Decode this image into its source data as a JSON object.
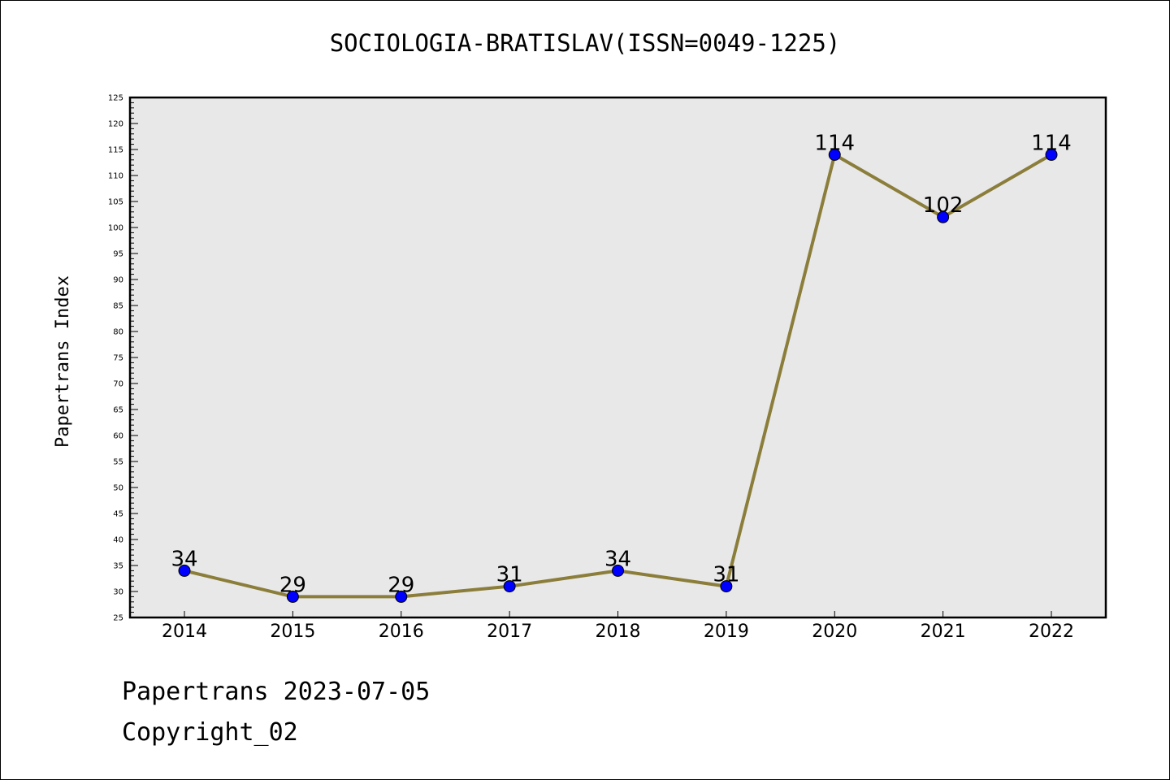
{
  "chart_data": {
    "type": "line",
    "title": "SOCIOLOGIA-BRATISLAV(ISSN=0049-1225)",
    "xlabel": "",
    "ylabel": "Papertrans Index",
    "categories": [
      "2014",
      "2015",
      "2016",
      "2017",
      "2018",
      "2019",
      "2020",
      "2021",
      "2022"
    ],
    "series": [
      {
        "values": [
          34,
          29,
          29,
          31,
          34,
          31,
          114,
          102,
          114
        ]
      }
    ],
    "ylim": [
      25,
      125
    ],
    "y_ticks": [
      "25",
      "30",
      "35",
      "40",
      "45",
      "50",
      "55",
      "60",
      "65",
      "70",
      "75",
      "80",
      "85",
      "90",
      "95",
      "100",
      "105",
      "110",
      "115",
      "120",
      "125"
    ],
    "data_labels": [
      "34",
      "29",
      "29",
      "31",
      "34",
      "31",
      "114",
      "102",
      "114"
    ],
    "grid": false,
    "legend": "none",
    "colors": {
      "line": "#8B7D3A",
      "marker": "#0000FF",
      "plot_background": "#E8E8E8"
    }
  },
  "footer": {
    "date_text": "Papertrans 2023-07-05",
    "copyright_text": "Copyright_02"
  }
}
